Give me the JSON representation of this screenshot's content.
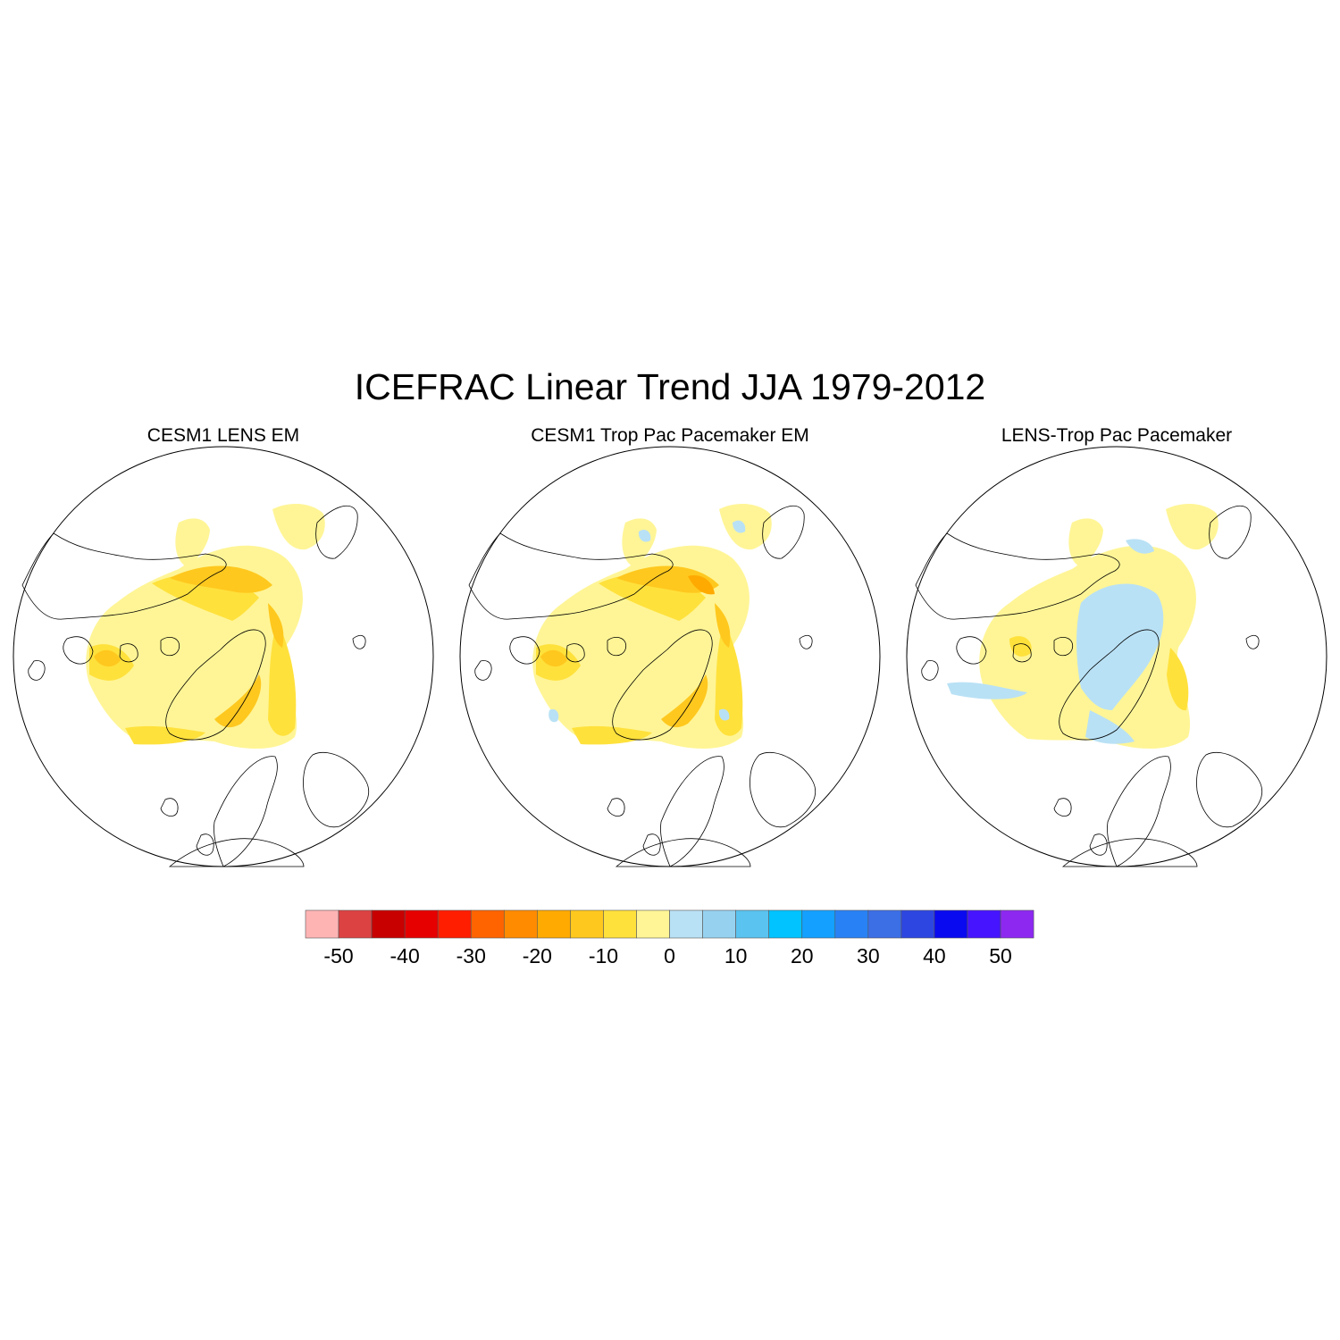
{
  "chart_data": {
    "type": "map",
    "title": "ICEFRAC Linear Trend JJA 1979-2012",
    "projection": "north polar stereographic",
    "panels": [
      {
        "title": "CESM1 LENS EM",
        "pattern": "decline"
      },
      {
        "title": "CESM1 Trop Pac Pacemaker EM",
        "pattern": "decline"
      },
      {
        "title": "LENS-Trop Pac Pacemaker",
        "pattern": "difference"
      }
    ],
    "colorbar": {
      "levels": [
        -50,
        -45,
        -40,
        -35,
        -30,
        -25,
        -20,
        -15,
        -10,
        -5,
        0,
        5,
        10,
        15,
        20,
        25,
        30,
        35,
        40,
        45,
        50
      ],
      "colors": [
        "#ffb4b4",
        "#dc4242",
        "#c80000",
        "#e60000",
        "#ff1e00",
        "#ff6400",
        "#ff8c00",
        "#ffaa00",
        "#ffc81e",
        "#ffe13c",
        "#fff596",
        "#b9e1f5",
        "#96d2f0",
        "#5ac3f0",
        "#00c3ff",
        "#14a0ff",
        "#2882f5",
        "#3c6ee6",
        "#2d46e1",
        "#0a0af0",
        "#4614ff",
        "#8c28f0"
      ],
      "tick_labels": [
        "-50",
        "-40",
        "-30",
        "-20",
        "-10",
        "0",
        "10",
        "20",
        "30",
        "40",
        "50"
      ]
    }
  }
}
